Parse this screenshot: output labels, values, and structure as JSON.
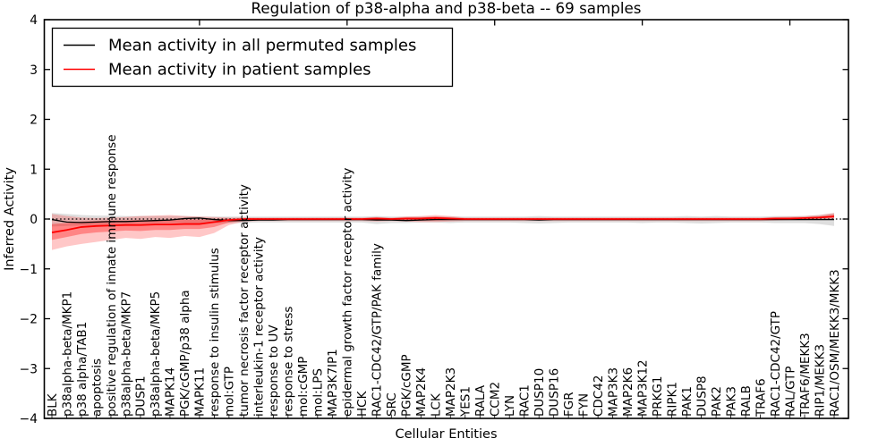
{
  "chart_data": {
    "type": "line",
    "title": "Regulation of p38-alpha and p38-beta -- 69 samples",
    "xlabel": "Cellular Entities",
    "ylabel": "Inferred Activity",
    "ylim": [
      -4,
      4
    ],
    "yticks": [
      4,
      3,
      2,
      1,
      0,
      -1,
      -2,
      -3,
      -4
    ],
    "ytick_labels": [
      "4",
      "3",
      "2",
      "1",
      "0",
      "−1",
      "−2",
      "−3",
      "−4"
    ],
    "x_major_tick_indices": [
      10,
      20,
      30,
      40,
      50
    ],
    "grid": false,
    "legend_position": "upper left",
    "reference_line": {
      "y": 0,
      "style": "dotted",
      "color": "#000000"
    },
    "categories": [
      "BLK",
      "p38alpha-beta/MKP1",
      "p38 alpha/TAB1",
      "apoptosis",
      "positive regulation of innate immune response",
      "p38alpha-beta/MKP7",
      "DUSP1",
      "p38alpha-beta/MKP5",
      "MAPK14",
      "PGK/cGMP/p38 alpha",
      "MAPK11",
      "response to insulin stimulus",
      "mol:GTP",
      "tumor necrosis factor receptor activity",
      "interleukin-1 receptor activity",
      "response to UV",
      "response to stress",
      "mol:cGMP",
      "mol:LPS",
      "MAP3K7IP1",
      "epidermal growth factor receptor activity",
      "HCK",
      "RAC1-CDC42/GTP/PAK family",
      "SRC",
      "PGK/cGMP",
      "MAP2K4",
      "LCK",
      "MAP2K3",
      "YES1",
      "RALA",
      "CCM2",
      "LYN",
      "RAC1",
      "DUSP10",
      "DUSP16",
      "FGR",
      "FYN",
      "CDC42",
      "MAP3K3",
      "MAP2K6",
      "MAP3K12",
      "PRKG1",
      "RIPK1",
      "PAK1",
      "DUSP8",
      "PAK2",
      "PAK3",
      "RALB",
      "TRAF6",
      "RAC1-CDC42/GTP",
      "RAL/GTP",
      "TRAF6/MEKK3",
      "RIP1/MEKK3",
      "RAC1/OSM/MEKK3/MKK3"
    ],
    "series": [
      {
        "name": "Mean activity in all permuted samples",
        "color": "#000000",
        "values": [
          -0.01,
          -0.06,
          -0.07,
          -0.06,
          -0.05,
          -0.05,
          -0.04,
          -0.03,
          -0.02,
          0.01,
          0.02,
          -0.01,
          -0.03,
          -0.03,
          -0.02,
          -0.02,
          -0.01,
          -0.01,
          -0.01,
          -0.01,
          -0.01,
          -0.01,
          -0.02,
          -0.02,
          -0.03,
          -0.02,
          -0.01,
          -0.01,
          -0.01,
          -0.01,
          -0.01,
          -0.01,
          -0.01,
          -0.02,
          -0.01,
          -0.01,
          -0.01,
          -0.01,
          -0.01,
          -0.01,
          -0.01,
          -0.01,
          -0.01,
          -0.01,
          -0.01,
          -0.01,
          -0.01,
          -0.01,
          -0.01,
          -0.01,
          -0.01,
          -0.01,
          -0.01,
          -0.01
        ],
        "band_upper": [
          0.12,
          0.1,
          0.08,
          0.07,
          0.07,
          0.06,
          0.06,
          0.06,
          0.06,
          0.06,
          0.05,
          0.05,
          0.05,
          0.05,
          0.05,
          0.05,
          0.05,
          0.05,
          0.05,
          0.05,
          0.05,
          0.05,
          0.06,
          0.05,
          0.05,
          0.05,
          0.05,
          0.05,
          0.05,
          0.05,
          0.05,
          0.05,
          0.05,
          0.06,
          0.05,
          0.05,
          0.05,
          0.05,
          0.05,
          0.05,
          0.05,
          0.05,
          0.05,
          0.06,
          0.05,
          0.06,
          0.05,
          0.05,
          0.05,
          0.06,
          0.06,
          0.06,
          0.08,
          0.12
        ],
        "band_lower": [
          -0.15,
          -0.14,
          -0.13,
          -0.12,
          -0.11,
          -0.1,
          -0.09,
          -0.09,
          -0.08,
          -0.08,
          -0.08,
          -0.08,
          -0.08,
          -0.08,
          -0.07,
          -0.07,
          -0.07,
          -0.07,
          -0.07,
          -0.07,
          -0.07,
          -0.07,
          -0.1,
          -0.08,
          -0.08,
          -0.07,
          -0.07,
          -0.08,
          -0.07,
          -0.07,
          -0.07,
          -0.07,
          -0.08,
          -0.09,
          -0.08,
          -0.07,
          -0.07,
          -0.07,
          -0.07,
          -0.07,
          -0.08,
          -0.07,
          -0.07,
          -0.08,
          -0.09,
          -0.08,
          -0.07,
          -0.07,
          -0.07,
          -0.08,
          -0.08,
          -0.08,
          -0.1,
          -0.14
        ]
      },
      {
        "name": "Mean activity in patient samples",
        "color": "#ff0000",
        "values": [
          -0.27,
          -0.22,
          -0.16,
          -0.14,
          -0.13,
          -0.12,
          -0.12,
          -0.11,
          -0.11,
          -0.1,
          -0.1,
          -0.06,
          -0.02,
          0,
          0,
          0,
          0,
          0,
          0,
          0,
          0,
          0,
          0.01,
          0,
          0.01,
          0.01,
          0.02,
          0.01,
          0,
          0,
          0,
          0,
          0,
          0,
          0,
          0,
          0,
          0,
          0,
          0,
          0,
          0,
          0,
          0,
          0,
          0,
          0,
          0,
          0,
          0.01,
          0.01,
          0.02,
          0.03,
          0.05
        ],
        "band_upper": [
          0.1,
          0.06,
          0.03,
          0.02,
          0.03,
          0.04,
          0.06,
          0.07,
          0.08,
          0.06,
          0.05,
          0.04,
          0.03,
          0.03,
          0.03,
          0.03,
          0.03,
          0.03,
          0.03,
          0.03,
          0.03,
          0.03,
          0.04,
          0.03,
          0.05,
          0.06,
          0.08,
          0.06,
          0.03,
          0.03,
          0.03,
          0.03,
          0.03,
          0.03,
          0.03,
          0.03,
          0.03,
          0.03,
          0.03,
          0.03,
          0.03,
          0.03,
          0.03,
          0.03,
          0.03,
          0.03,
          0.03,
          0.03,
          0.03,
          0.04,
          0.05,
          0.06,
          0.08,
          0.12
        ],
        "band_lower": [
          -0.62,
          -0.55,
          -0.5,
          -0.46,
          -0.42,
          -0.38,
          -0.4,
          -0.36,
          -0.38,
          -0.34,
          -0.36,
          -0.28,
          -0.12,
          -0.05,
          -0.04,
          -0.04,
          -0.04,
          -0.04,
          -0.04,
          -0.04,
          -0.04,
          -0.04,
          -0.05,
          -0.04,
          -0.05,
          -0.06,
          -0.06,
          -0.05,
          -0.04,
          -0.04,
          -0.04,
          -0.04,
          -0.04,
          -0.04,
          -0.04,
          -0.04,
          -0.04,
          -0.04,
          -0.04,
          -0.04,
          -0.04,
          -0.04,
          -0.04,
          -0.04,
          -0.04,
          -0.04,
          -0.04,
          -0.04,
          -0.04,
          -0.03,
          -0.02,
          -0.02,
          -0.01,
          0.0
        ],
        "inner_band_upper": [
          -0.1,
          -0.08,
          -0.05,
          -0.04,
          -0.03,
          -0.03,
          -0.02,
          -0.02,
          -0.01,
          -0.01,
          -0.01,
          0.0,
          0.01,
          0.01,
          0.01,
          0.01,
          0.01,
          0.01,
          0.01,
          0.01,
          0.01,
          0.01,
          0.02,
          0.01,
          0.02,
          0.03,
          0.05,
          0.03,
          0.01,
          0.01,
          0.01,
          0.01,
          0.01,
          0.01,
          0.01,
          0.01,
          0.01,
          0.01,
          0.01,
          0.01,
          0.01,
          0.01,
          0.01,
          0.01,
          0.01,
          0.01,
          0.01,
          0.01,
          0.01,
          0.02,
          0.02,
          0.03,
          0.05,
          0.09
        ],
        "inner_band_lower": [
          -0.42,
          -0.36,
          -0.3,
          -0.27,
          -0.25,
          -0.23,
          -0.24,
          -0.22,
          -0.22,
          -0.2,
          -0.2,
          -0.16,
          -0.07,
          -0.03,
          -0.02,
          -0.02,
          -0.02,
          -0.02,
          -0.02,
          -0.02,
          -0.02,
          -0.02,
          -0.03,
          -0.02,
          -0.02,
          -0.03,
          -0.03,
          -0.02,
          -0.02,
          -0.02,
          -0.02,
          -0.02,
          -0.02,
          -0.02,
          -0.02,
          -0.02,
          -0.02,
          -0.02,
          -0.02,
          -0.02,
          -0.02,
          -0.02,
          -0.02,
          -0.02,
          -0.02,
          -0.02,
          -0.02,
          -0.02,
          -0.02,
          -0.01,
          0.0,
          0.01,
          0.02,
          0.03
        ]
      }
    ]
  }
}
